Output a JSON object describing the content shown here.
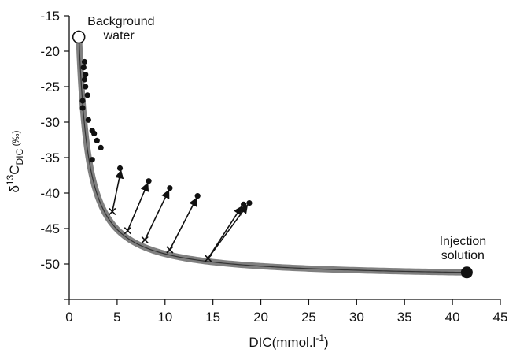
{
  "chart_data": {
    "type": "scatter",
    "xlabel": "DIC(mmol.l",
    "xlabel_sup": "-1",
    "xlabel_close": ")",
    "ylabel": {
      "delta": "δ",
      "sup": "13",
      "main": "C",
      "sub": "DIC",
      "unit": " (‰)"
    },
    "xlim": [
      0,
      45
    ],
    "ylim": [
      -55,
      -15
    ],
    "x_ticks": [
      "0",
      "5",
      "10",
      "15",
      "20",
      "25",
      "30",
      "35",
      "40",
      "45"
    ],
    "y_ticks": [
      "-15",
      "-20",
      "-25",
      "-30",
      "-35",
      "-40",
      "-45",
      "-50"
    ],
    "mixing_curve": {
      "from": {
        "x": 1.0,
        "y": -17.5
      },
      "to": {
        "x": 41.5,
        "y": -51.2
      },
      "color": "#808080"
    },
    "endmembers": [
      {
        "label_lines": [
          "Background",
          "water"
        ],
        "x": 1.0,
        "y": -18.0,
        "style": "open"
      },
      {
        "label_lines": [
          "Injection",
          "solution"
        ],
        "x": 41.5,
        "y": -51.2,
        "style": "filled"
      }
    ],
    "observations": [
      {
        "x": 1.6,
        "y": -21.5
      },
      {
        "x": 1.5,
        "y": -22.3
      },
      {
        "x": 1.7,
        "y": -23.3
      },
      {
        "x": 1.6,
        "y": -24.0
      },
      {
        "x": 1.7,
        "y": -25.0
      },
      {
        "x": 1.9,
        "y": -26.2
      },
      {
        "x": 1.4,
        "y": -27.0
      },
      {
        "x": 1.4,
        "y": -28.0
      },
      {
        "x": 2.0,
        "y": -29.7
      },
      {
        "x": 2.4,
        "y": -31.2
      },
      {
        "x": 2.6,
        "y": -31.6
      },
      {
        "x": 2.9,
        "y": -32.6
      },
      {
        "x": 3.3,
        "y": -33.6
      },
      {
        "x": 2.4,
        "y": -35.3
      },
      {
        "x": 5.3,
        "y": -36.5
      },
      {
        "x": 8.3,
        "y": -38.3
      },
      {
        "x": 10.5,
        "y": -39.3
      },
      {
        "x": 13.4,
        "y": -40.4
      },
      {
        "x": 18.2,
        "y": -41.6
      },
      {
        "x": 18.8,
        "y": -41.4
      }
    ],
    "mixing_points": [
      {
        "x": 4.5,
        "y": -42.6
      },
      {
        "x": 6.1,
        "y": -45.3
      },
      {
        "x": 7.9,
        "y": -46.6
      },
      {
        "x": 10.5,
        "y": -48.0
      },
      {
        "x": 14.5,
        "y": -49.2
      }
    ],
    "arrows": [
      {
        "from": {
          "x": 4.5,
          "y": -42.6
        },
        "to": {
          "x": 5.4,
          "y": -36.8
        }
      },
      {
        "from": {
          "x": 6.1,
          "y": -45.3
        },
        "to": {
          "x": 8.2,
          "y": -38.6
        }
      },
      {
        "from": {
          "x": 7.9,
          "y": -46.6
        },
        "to": {
          "x": 10.4,
          "y": -39.6
        }
      },
      {
        "from": {
          "x": 10.5,
          "y": -48.0
        },
        "to": {
          "x": 13.3,
          "y": -40.7
        }
      },
      {
        "from": {
          "x": 14.5,
          "y": -49.2
        },
        "to": {
          "x": 18.0,
          "y": -41.9
        }
      },
      {
        "from": {
          "x": 14.5,
          "y": -49.2
        },
        "to": {
          "x": 18.6,
          "y": -41.7
        }
      }
    ]
  }
}
